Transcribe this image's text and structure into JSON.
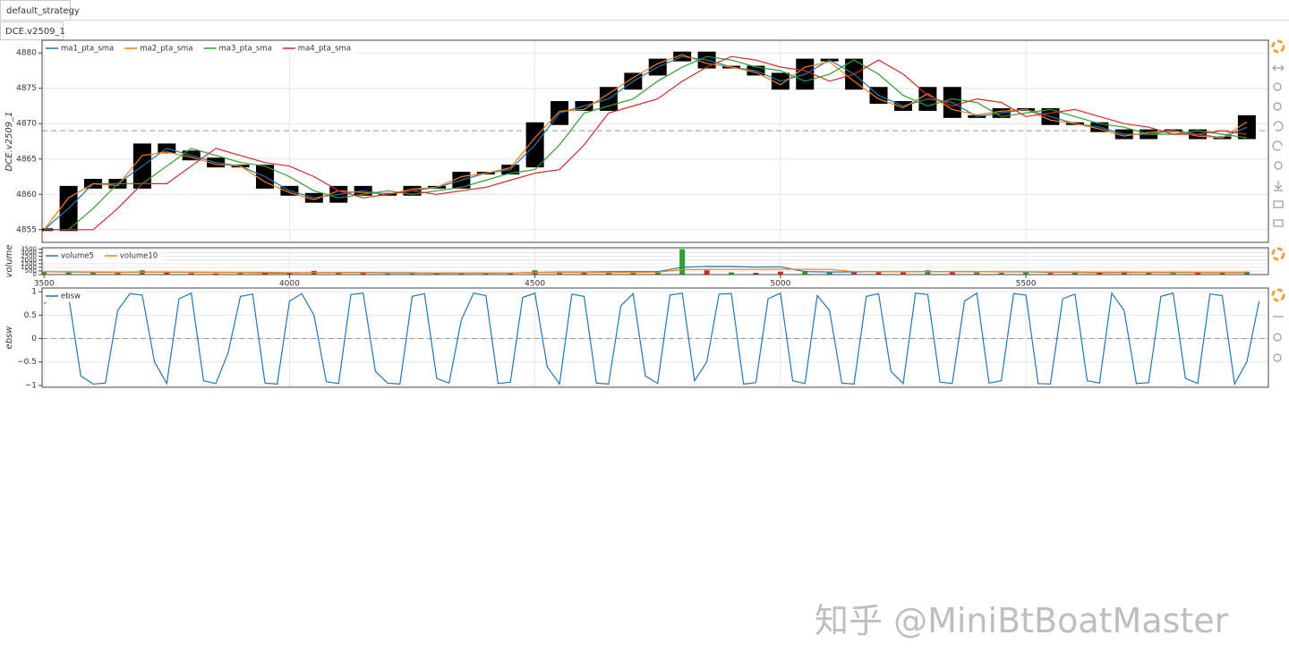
{
  "tabs": [
    "default_strategy",
    "DCE.v2509_1"
  ],
  "watermark": "知乎 @MiniBtBoatMaster",
  "chart_data": [
    {
      "type": "candle",
      "ylabel": "DCE.v2509_1",
      "grid": true,
      "legend": "top-left",
      "hline": 4869,
      "xlim": [
        3496,
        5994
      ],
      "ylim": [
        4853.2,
        4881.8
      ],
      "yticks": [
        4855,
        4860,
        4865,
        4870,
        4875,
        4880
      ],
      "x": [
        3500,
        3550,
        3600,
        3650,
        3700,
        3750,
        3800,
        3850,
        3900,
        3950,
        4000,
        4050,
        4100,
        4150,
        4200,
        4250,
        4300,
        4350,
        4400,
        4450,
        4500,
        4550,
        4600,
        4650,
        4700,
        4750,
        4800,
        4850,
        4900,
        4950,
        5000,
        5050,
        5100,
        5150,
        5200,
        5250,
        5300,
        5350,
        5400,
        5450,
        5500,
        5550,
        5600,
        5650,
        5700,
        5750,
        5800,
        5850,
        5900,
        5950
      ],
      "price": {
        "color": "#000000",
        "values": [
          4855,
          4861,
          4862,
          4861,
          4867,
          4866,
          4865,
          4864,
          4864,
          4861,
          4860,
          4859,
          4861,
          4860,
          4860,
          4861,
          4861,
          4863,
          4863,
          4864,
          4870,
          4873,
          4872,
          4875,
          4877,
          4879,
          4880,
          4878,
          4878,
          4877,
          4875,
          4879,
          4879,
          4875,
          4873,
          4872,
          4875,
          4871,
          4871,
          4872,
          4872,
          4870,
          4870,
          4869,
          4868,
          4869,
          4869,
          4868,
          4868,
          4871
        ]
      },
      "series": [
        {
          "name": "ma1_pta_sma",
          "color": "#1f77b4",
          "values": [
            4855,
            4858,
            4861.5,
            4861.5,
            4864,
            4866.5,
            4865.5,
            4864.5,
            4864,
            4862.5,
            4860.5,
            4859.5,
            4860,
            4860.5,
            4860,
            4860.5,
            4861,
            4862,
            4863,
            4863.5,
            4867,
            4871.5,
            4872.5,
            4873.5,
            4876,
            4878,
            4879.5,
            4879,
            4878,
            4877.5,
            4876,
            4877,
            4879,
            4877,
            4874,
            4872.5,
            4873.5,
            4873,
            4871,
            4871.5,
            4872,
            4871,
            4870,
            4869.5,
            4868.5,
            4868.5,
            4869,
            4868.5,
            4868,
            4869.5
          ]
        },
        {
          "name": "ma2_pta_sma",
          "color": "#ff7f0e",
          "values": [
            4855,
            4859.5,
            4861.5,
            4861.25,
            4865.5,
            4866,
            4865.25,
            4864.25,
            4864,
            4861.75,
            4860.25,
            4859.25,
            4860.5,
            4860.25,
            4860,
            4860.75,
            4861,
            4862.5,
            4863,
            4863.75,
            4868,
            4871.75,
            4872,
            4874.25,
            4876.5,
            4878.5,
            4879.75,
            4878.5,
            4878,
            4877.25,
            4875.5,
            4878,
            4878.75,
            4876,
            4873.5,
            4872.25,
            4874.25,
            4872,
            4871.25,
            4871.75,
            4872,
            4870.5,
            4870,
            4869.25,
            4868.25,
            4868.75,
            4869,
            4868.25,
            4868,
            4870.25
          ]
        },
        {
          "name": "ma3_pta_sma",
          "color": "#2ca02c",
          "values": [
            4855,
            4855,
            4858,
            4861.5,
            4861.5,
            4864,
            4866.5,
            4865.5,
            4864.5,
            4864,
            4862.5,
            4860.5,
            4859.5,
            4860,
            4860.5,
            4860,
            4860.5,
            4861,
            4862,
            4863,
            4863.5,
            4867,
            4871.5,
            4872.5,
            4873.5,
            4876,
            4878,
            4879.5,
            4879,
            4878,
            4877.5,
            4876,
            4877,
            4879,
            4877,
            4874,
            4872.5,
            4873.5,
            4873,
            4871,
            4871.5,
            4872,
            4871,
            4870,
            4869.5,
            4868.5,
            4868.5,
            4869,
            4868.5,
            4868
          ]
        },
        {
          "name": "ma4_pta_sma",
          "color": "#d62728",
          "values": [
            4855,
            4855,
            4855,
            4858,
            4861.5,
            4861.5,
            4864,
            4866.5,
            4865.5,
            4864.5,
            4864,
            4862.5,
            4860.5,
            4859.5,
            4860,
            4860.5,
            4860,
            4860.5,
            4861,
            4862,
            4863,
            4863.5,
            4867,
            4871.5,
            4872.5,
            4873.5,
            4876,
            4878,
            4879.5,
            4879,
            4878,
            4877.5,
            4876,
            4877,
            4879,
            4877,
            4874,
            4872.5,
            4873.5,
            4873,
            4871,
            4871.5,
            4872,
            4871,
            4870,
            4869.5,
            4868.5,
            4868.5,
            4869,
            4868.5
          ]
        }
      ]
    },
    {
      "type": "volume",
      "ylabel": "volume",
      "grid": true,
      "legend": "top-left",
      "up_color": "#2ca02c",
      "down_color": "#d62728",
      "xlim": [
        3496,
        5994
      ],
      "ylim": [
        0,
        3700
      ],
      "yticks": [
        0,
        500,
        1000,
        1500,
        2000,
        2500,
        3000,
        3500
      ],
      "xticks": [
        3500,
        4000,
        4500,
        5000,
        5500
      ],
      "x": [
        3500,
        3550,
        3600,
        3650,
        3700,
        3750,
        3800,
        3850,
        3900,
        3950,
        4000,
        4050,
        4100,
        4150,
        4200,
        4250,
        4300,
        4350,
        4400,
        4450,
        4500,
        4550,
        4600,
        4650,
        4700,
        4750,
        4800,
        4850,
        4900,
        4950,
        5000,
        5050,
        5100,
        5150,
        5200,
        5250,
        5300,
        5350,
        5400,
        5450,
        5500,
        5550,
        5600,
        5650,
        5700,
        5750,
        5800,
        5850,
        5900,
        5950
      ],
      "values": [
        400,
        300,
        250,
        200,
        600,
        300,
        200,
        150,
        200,
        300,
        200,
        500,
        250,
        200,
        150,
        200,
        150,
        300,
        200,
        250,
        600,
        400,
        300,
        350,
        400,
        500,
        3500,
        600,
        300,
        250,
        400,
        500,
        300,
        400,
        350,
        300,
        600,
        400,
        300,
        250,
        300,
        200,
        350,
        200,
        400,
        250,
        200,
        300,
        200,
        400
      ],
      "series": [
        {
          "name": "volume5",
          "color": "#1f77b4",
          "values": [
            400,
            350,
            320,
            290,
            350,
            330,
            310,
            290,
            290,
            230,
            210,
            270,
            290,
            290,
            260,
            260,
            190,
            220,
            200,
            220,
            300,
            350,
            350,
            380,
            410,
            390,
            1010,
            1140,
            1120,
            1030,
            1070,
            410,
            350,
            370,
            390,
            370,
            410,
            400,
            390,
            370,
            370,
            310,
            310,
            260,
            290,
            280,
            280,
            270,
            270,
            270
          ]
        },
        {
          "name": "volume10",
          "color": "#ff7f0e",
          "values": [
            400,
            380,
            350,
            330,
            350,
            340,
            330,
            320,
            310,
            310,
            270,
            280,
            280,
            270,
            240,
            230,
            230,
            240,
            240,
            240,
            280,
            290,
            280,
            290,
            300,
            330,
            680,
            710,
            710,
            720,
            740,
            730,
            720,
            410,
            380,
            380,
            410,
            390,
            380,
            370,
            390,
            360,
            360,
            330,
            340,
            330,
            340,
            320,
            320,
            330
          ]
        }
      ]
    },
    {
      "type": "line",
      "ylabel": "ebsw",
      "grid": true,
      "legend": "top-left",
      "hline": 0,
      "xlim": [
        3496,
        5994
      ],
      "ylim": [
        -1.04,
        1.08
      ],
      "yticks": [
        {
          "value": -1,
          "label": "−1"
        },
        {
          "value": -0.5,
          "label": "−0.5"
        },
        0,
        0.5,
        1
      ],
      "x": [
        3500,
        3525,
        3550,
        3575,
        3600,
        3625,
        3650,
        3675,
        3700,
        3725,
        3750,
        3775,
        3800,
        3825,
        3850,
        3875,
        3900,
        3925,
        3950,
        3975,
        4000,
        4025,
        4050,
        4075,
        4100,
        4125,
        4150,
        4175,
        4200,
        4225,
        4250,
        4275,
        4300,
        4325,
        4350,
        4375,
        4400,
        4425,
        4450,
        4475,
        4500,
        4525,
        4550,
        4575,
        4600,
        4625,
        4650,
        4675,
        4700,
        4725,
        4750,
        4775,
        4800,
        4825,
        4850,
        4875,
        4900,
        4925,
        4950,
        4975,
        5000,
        5025,
        5050,
        5075,
        5100,
        5125,
        5150,
        5175,
        5200,
        5225,
        5250,
        5275,
        5300,
        5325,
        5350,
        5375,
        5400,
        5425,
        5450,
        5475,
        5500,
        5525,
        5550,
        5575,
        5600,
        5625,
        5650,
        5675,
        5700,
        5725,
        5750,
        5775,
        5800,
        5825,
        5850,
        5875,
        5900,
        5925,
        5950,
        5975
      ],
      "series": [
        {
          "name": "ebsw",
          "color": "#1f77b4",
          "values": [
            0.75,
            0.95,
            0.9,
            -0.8,
            -0.97,
            -0.95,
            0.6,
            0.96,
            0.93,
            -0.5,
            -0.96,
            0.85,
            0.97,
            -0.9,
            -0.96,
            -0.3,
            0.9,
            0.95,
            -0.95,
            -0.97,
            0.8,
            0.96,
            0.5,
            -0.92,
            -0.96,
            0.94,
            0.97,
            -0.7,
            -0.95,
            -0.97,
            0.9,
            0.96,
            -0.85,
            -0.95,
            0.4,
            0.97,
            0.92,
            -0.96,
            -0.93,
            0.88,
            0.97,
            -0.6,
            -0.97,
            0.95,
            0.9,
            -0.95,
            -0.97,
            0.7,
            0.96,
            -0.8,
            -0.96,
            0.93,
            0.97,
            -0.9,
            -0.5,
            0.95,
            0.96,
            -0.97,
            -0.94,
            0.85,
            0.97,
            -0.9,
            -0.96,
            0.92,
            0.6,
            -0.95,
            -0.97,
            0.9,
            0.96,
            -0.7,
            -0.96,
            0.97,
            0.94,
            -0.93,
            -0.96,
            0.8,
            0.97,
            -0.95,
            -0.9,
            0.96,
            0.93,
            -0.96,
            -0.97,
            0.85,
            0.95,
            -0.9,
            -0.95,
            0.97,
            0.6,
            -0.96,
            -0.94,
            0.9,
            0.97,
            -0.85,
            -0.96,
            0.95,
            0.92,
            -0.97,
            -0.5,
            0.8
          ]
        }
      ]
    }
  ]
}
